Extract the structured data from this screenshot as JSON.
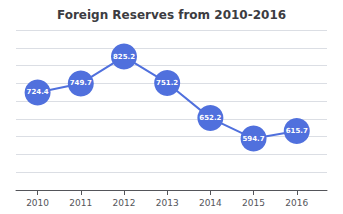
{
  "chart_data": {
    "type": "line",
    "title": "Foreign Reserves from 2010-2016",
    "x": [
      2010,
      2011,
      2012,
      2013,
      2014,
      2015,
      2016
    ],
    "values": [
      724.4,
      749.7,
      825.2,
      751.2,
      652.2,
      594.7,
      615.7
    ],
    "xlim": [
      2009.5,
      2016.7
    ],
    "xticks": [
      2010,
      2011,
      2012,
      2013,
      2014,
      2015,
      2016
    ],
    "ylim": [
      450,
      900
    ],
    "yticks": [
      450,
      500,
      550,
      600,
      650,
      700,
      750,
      800,
      850,
      900
    ],
    "grid": true,
    "data_labels": true,
    "tick_labels": "x"
  }
}
